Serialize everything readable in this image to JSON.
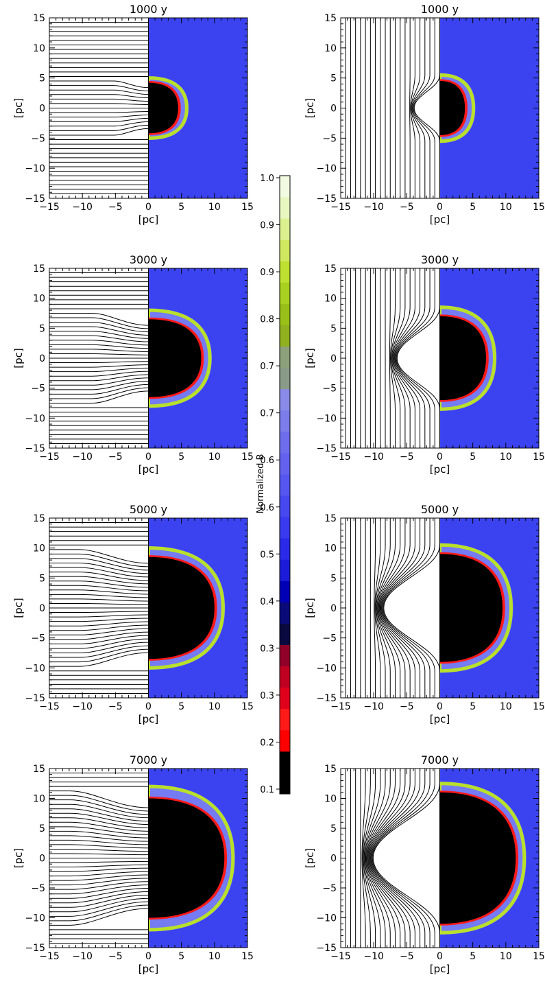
{
  "chart_data": [
    {
      "type": "heatmap",
      "title": "1000 y",
      "xlabel": "[pc]",
      "ylabel": "[pc]",
      "xlim": [
        -15,
        15
      ],
      "ylim": [
        -15,
        15
      ],
      "xticks": [
        "−15",
        "−10",
        "−5",
        "0",
        "5",
        "10",
        "15"
      ],
      "yticks": [
        "15",
        "10",
        "5",
        "0",
        "−5",
        "−10",
        "−15"
      ],
      "field_orientation": "horizontal",
      "bubble": {
        "front_x": 5.5,
        "half_height": 5.0,
        "cavity_half_height": 4.2
      }
    },
    {
      "type": "heatmap",
      "title": "1000 y",
      "xlabel": "[pc]",
      "ylabel": "[pc]",
      "xlim": [
        -15,
        15
      ],
      "ylim": [
        -15,
        15
      ],
      "xticks": [
        "−15",
        "−10",
        "−5",
        "0",
        "5",
        "10",
        "15"
      ],
      "yticks": [
        "15",
        "10",
        "5",
        "0",
        "−5",
        "−10",
        "−15"
      ],
      "field_orientation": "vertical",
      "bubble": {
        "front_x": 4.8,
        "half_height": 5.5,
        "cavity_half_height": 4.5
      }
    },
    {
      "type": "heatmap",
      "title": "3000 y",
      "xlabel": "[pc]",
      "ylabel": "[pc]",
      "xlim": [
        -15,
        15
      ],
      "ylim": [
        -15,
        15
      ],
      "xticks": [
        "−15",
        "−10",
        "−5",
        "0",
        "5",
        "10",
        "15"
      ],
      "yticks": [
        "15",
        "10",
        "5",
        "0",
        "−5",
        "−10",
        "−15"
      ],
      "field_orientation": "horizontal",
      "bubble": {
        "front_x": 9.0,
        "half_height": 8.0,
        "cavity_half_height": 6.5
      }
    },
    {
      "type": "heatmap",
      "title": "3000 y",
      "xlabel": "[pc]",
      "ylabel": "[pc]",
      "xlim": [
        -15,
        15
      ],
      "ylim": [
        -15,
        15
      ],
      "xticks": [
        "−15",
        "−10",
        "−5",
        "0",
        "5",
        "10",
        "15"
      ],
      "yticks": [
        "15",
        "10",
        "5",
        "0",
        "−5",
        "−10",
        "−15"
      ],
      "field_orientation": "vertical",
      "bubble": {
        "front_x": 8.0,
        "half_height": 8.5,
        "cavity_half_height": 7.0
      }
    },
    {
      "type": "heatmap",
      "title": "5000 y",
      "xlabel": "[pc]",
      "ylabel": "[pc]",
      "xlim": [
        -15,
        15
      ],
      "ylim": [
        -15,
        15
      ],
      "xticks": [
        "−15",
        "−10",
        "−5",
        "0",
        "5",
        "10",
        "15"
      ],
      "yticks": [
        "15",
        "10",
        "5",
        "0",
        "−5",
        "−10",
        "−15"
      ],
      "field_orientation": "horizontal",
      "bubble": {
        "front_x": 11.0,
        "half_height": 10.0,
        "cavity_half_height": 8.5
      }
    },
    {
      "type": "heatmap",
      "title": "5000 y",
      "xlabel": "[pc]",
      "ylabel": "[pc]",
      "xlim": [
        -15,
        15
      ],
      "ylim": [
        -15,
        15
      ],
      "xticks": [
        "−15",
        "−10",
        "−5",
        "0",
        "5",
        "10",
        "15"
      ],
      "yticks": [
        "15",
        "10",
        "5",
        "0",
        "−5",
        "−10",
        "−15"
      ],
      "field_orientation": "vertical",
      "bubble": {
        "front_x": 10.5,
        "half_height": 10.5,
        "cavity_half_height": 9.0
      }
    },
    {
      "type": "heatmap",
      "title": "7000 y",
      "xlabel": "[pc]",
      "ylabel": "[pc]",
      "xlim": [
        -15,
        15
      ],
      "ylim": [
        -15,
        15
      ],
      "xticks": [
        "−15",
        "−10",
        "−5",
        "0",
        "5",
        "10",
        "15"
      ],
      "yticks": [
        "15",
        "10",
        "5",
        "0",
        "−5",
        "−10",
        "−15"
      ],
      "field_orientation": "horizontal",
      "bubble": {
        "front_x": 12.5,
        "half_height": 12.0,
        "cavity_half_height": 10.0
      }
    },
    {
      "type": "heatmap",
      "title": "7000 y",
      "xlabel": "[pc]",
      "ylabel": "[pc]",
      "xlim": [
        -15,
        15
      ],
      "ylim": [
        -15,
        15
      ],
      "xticks": [
        "−15",
        "−10",
        "−5",
        "0",
        "5",
        "10",
        "15"
      ],
      "yticks": [
        "15",
        "10",
        "5",
        "0",
        "−5",
        "−10",
        "−15"
      ],
      "field_orientation": "vertical",
      "bubble": {
        "front_x": 12.5,
        "half_height": 12.5,
        "cavity_half_height": 11.0
      }
    }
  ],
  "colorbar": {
    "label": "Normalized B",
    "ticks": [
      "1.0",
      "0.9",
      "0.9",
      "0.8",
      "0.7",
      "0.7",
      "0.6",
      "0.6",
      "0.5",
      "0.4",
      "0.3",
      "0.3",
      "0.2",
      "0.1"
    ],
    "colors": [
      "#000000",
      "#000000",
      "#ff0000",
      "#ff1a1a",
      "#e0001c",
      "#c00022",
      "#900028",
      "#0a0a40",
      "#0a0a78",
      "#0000b4",
      "#1c1cd8",
      "#2a2ae8",
      "#3a3aee",
      "#4848f0",
      "#5656f0",
      "#6262ee",
      "#6e6eec",
      "#7c7cea",
      "#8a8ae8",
      "#8a9a88",
      "#8ca07c",
      "#90b020",
      "#98c018",
      "#a8d020",
      "#bee030",
      "#d0e860",
      "#dcf090",
      "#e8f6c0",
      "#f2fae0"
    ]
  },
  "colors": {
    "background": "#3b43f0",
    "cavity": "#000000",
    "rim": "#ff1a1a",
    "shell": "#b9e02a"
  }
}
